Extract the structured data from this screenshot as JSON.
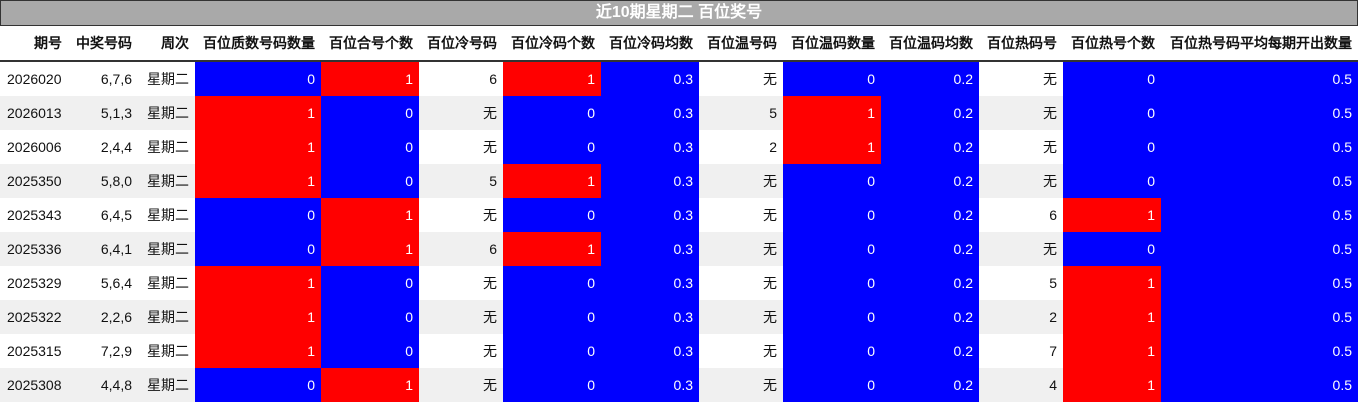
{
  "title": "近10期星期二 百位奖号",
  "colors": {
    "zero": "#0000ff",
    "one": "#ff0000",
    "avg": "#0000ff",
    "header_bar": "#a9a9a9",
    "alt_row": "#f0f0f0"
  },
  "columns": [
    {
      "label": "期号",
      "type": "text"
    },
    {
      "label": "中奖号码",
      "type": "text"
    },
    {
      "label": "周次",
      "type": "text"
    },
    {
      "label": "百位质数号码数量",
      "type": "count"
    },
    {
      "label": "百位合号个数",
      "type": "count"
    },
    {
      "label": "百位冷号码",
      "type": "text"
    },
    {
      "label": "百位冷码个数",
      "type": "count"
    },
    {
      "label": "百位冷码均数",
      "type": "avg"
    },
    {
      "label": "百位温号码",
      "type": "text"
    },
    {
      "label": "百位温码数量",
      "type": "count"
    },
    {
      "label": "百位温码均数",
      "type": "avg"
    },
    {
      "label": "百位热码号",
      "type": "text"
    },
    {
      "label": "百位热号个数",
      "type": "count"
    },
    {
      "label": "百位热号码平均每期开出数量",
      "type": "avg"
    }
  ],
  "rows": [
    [
      "2026020",
      "6,7,6",
      "星期二",
      "0",
      "1",
      "6",
      "1",
      "0.3",
      "无",
      "0",
      "0.2",
      "无",
      "0",
      "0.5"
    ],
    [
      "2026013",
      "5,1,3",
      "星期二",
      "1",
      "0",
      "无",
      "0",
      "0.3",
      "5",
      "1",
      "0.2",
      "无",
      "0",
      "0.5"
    ],
    [
      "2026006",
      "2,4,4",
      "星期二",
      "1",
      "0",
      "无",
      "0",
      "0.3",
      "2",
      "1",
      "0.2",
      "无",
      "0",
      "0.5"
    ],
    [
      "2025350",
      "5,8,0",
      "星期二",
      "1",
      "0",
      "5",
      "1",
      "0.3",
      "无",
      "0",
      "0.2",
      "无",
      "0",
      "0.5"
    ],
    [
      "2025343",
      "6,4,5",
      "星期二",
      "0",
      "1",
      "无",
      "0",
      "0.3",
      "无",
      "0",
      "0.2",
      "6",
      "1",
      "0.5"
    ],
    [
      "2025336",
      "6,4,1",
      "星期二",
      "0",
      "1",
      "6",
      "1",
      "0.3",
      "无",
      "0",
      "0.2",
      "无",
      "0",
      "0.5"
    ],
    [
      "2025329",
      "5,6,4",
      "星期二",
      "1",
      "0",
      "无",
      "0",
      "0.3",
      "无",
      "0",
      "0.2",
      "5",
      "1",
      "0.5"
    ],
    [
      "2025322",
      "2,2,6",
      "星期二",
      "1",
      "0",
      "无",
      "0",
      "0.3",
      "无",
      "0",
      "0.2",
      "2",
      "1",
      "0.5"
    ],
    [
      "2025315",
      "7,2,9",
      "星期二",
      "1",
      "0",
      "无",
      "0",
      "0.3",
      "无",
      "0",
      "0.2",
      "7",
      "1",
      "0.5"
    ],
    [
      "2025308",
      "4,4,8",
      "星期二",
      "0",
      "1",
      "无",
      "0",
      "0.3",
      "无",
      "0",
      "0.2",
      "4",
      "1",
      "0.5"
    ]
  ]
}
